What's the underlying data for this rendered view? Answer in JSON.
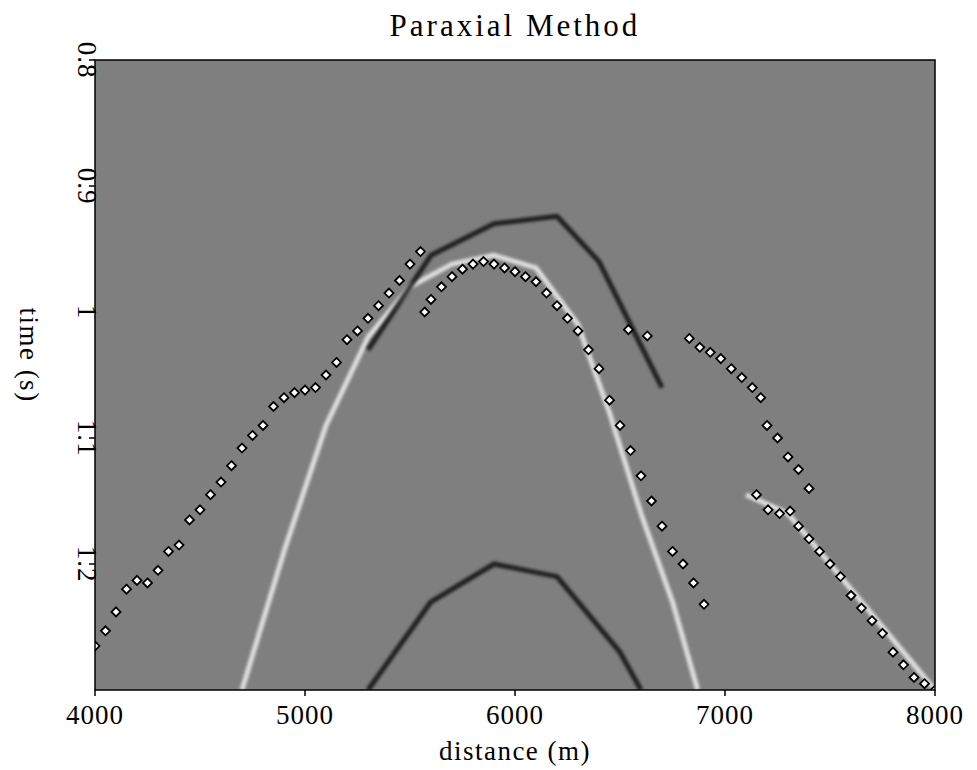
{
  "chart_data": {
    "type": "scatter",
    "title": "Paraxial Method",
    "xlabel": "distance (m)",
    "ylabel": "time (s)",
    "xlim": [
      4000,
      8000
    ],
    "ylim": [
      1.3,
      0.8
    ],
    "xticks": [
      4000,
      5000,
      6000,
      7000,
      8000
    ],
    "yticks": [
      0.8,
      0.9,
      1,
      1.1,
      1.2
    ],
    "series": [
      {
        "type": "scatter",
        "marker": "diamond",
        "color": "#ffffff",
        "x": [
          4000,
          4050,
          4100,
          4150,
          4200,
          4250,
          4300,
          4350,
          4400,
          4450,
          4500,
          4550,
          4600,
          4650,
          4700,
          4750,
          4800,
          4850,
          4900,
          4950,
          5000,
          5050,
          5100,
          5150,
          5200,
          5250,
          5300,
          5350,
          5400,
          5450,
          5500,
          5550,
          5570,
          5600,
          5650,
          5700,
          5750,
          5800,
          5850,
          5900,
          5950,
          6000,
          6050,
          6100,
          6150,
          6200,
          6250,
          6300,
          6350,
          6400,
          6450,
          6500,
          6550,
          6600,
          6650,
          6700,
          6750,
          6800,
          6850,
          6900,
          6540,
          6630,
          6830,
          6880,
          6930,
          6980,
          7030,
          7080,
          7130,
          7170,
          7200,
          7250,
          7300,
          7350,
          7400,
          7150,
          7205,
          7260,
          7310,
          7350,
          7400,
          7450,
          7500,
          7550,
          7600,
          7650,
          7700,
          7750,
          7800,
          7850,
          7900,
          7950,
          8000
        ],
        "values": [
          1.265,
          1.253,
          1.238,
          1.22,
          1.213,
          1.215,
          1.205,
          1.19,
          1.185,
          1.165,
          1.157,
          1.145,
          1.135,
          1.122,
          1.108,
          1.098,
          1.09,
          1.075,
          1.068,
          1.064,
          1.062,
          1.06,
          1.05,
          1.04,
          1.022,
          1.015,
          1.005,
          0.995,
          0.985,
          0.975,
          0.962,
          0.952,
          1.0,
          0.99,
          0.98,
          0.972,
          0.966,
          0.962,
          0.96,
          0.962,
          0.965,
          0.968,
          0.972,
          0.976,
          0.985,
          0.995,
          1.005,
          1.015,
          1.03,
          1.045,
          1.07,
          1.09,
          1.11,
          1.13,
          1.15,
          1.17,
          1.19,
          1.2,
          1.215,
          1.232,
          1.014,
          1.019,
          1.021,
          1.028,
          1.032,
          1.037,
          1.045,
          1.052,
          1.06,
          1.068,
          1.09,
          1.1,
          1.115,
          1.125,
          1.14,
          1.145,
          1.157,
          1.16,
          1.158,
          1.17,
          1.18,
          1.19,
          1.2,
          1.21,
          1.225,
          1.235,
          1.245,
          1.255,
          1.27,
          1.28,
          1.29,
          1.295,
          1.3
        ]
      },
      {
        "type": "line",
        "color": "#ffffff",
        "line_style": "solid",
        "x": [
          4700,
          4900,
          5100,
          5300,
          5500,
          5700,
          5900,
          6100,
          6300,
          6450,
          6600,
          6750,
          6870
        ],
        "values": [
          1.3,
          1.19,
          1.09,
          1.02,
          0.98,
          0.962,
          0.955,
          0.965,
          1.01,
          1.08,
          1.16,
          1.23,
          1.3
        ]
      },
      {
        "type": "line",
        "color": "#000000",
        "line_style": "solid",
        "x": [
          5300,
          5600,
          5900,
          6200,
          6400,
          6550,
          6700
        ],
        "values": [
          1.03,
          0.955,
          0.93,
          0.924,
          0.96,
          1.01,
          1.06
        ]
      },
      {
        "type": "line",
        "color": "#ffffff",
        "line_style": "solid",
        "x": [
          7100,
          7300,
          7500,
          7700,
          7900,
          8000
        ],
        "values": [
          1.145,
          1.16,
          1.2,
          1.24,
          1.28,
          1.3
        ]
      },
      {
        "type": "line",
        "color": "#000000",
        "line_style": "solid",
        "x": [
          5300,
          5600,
          5900,
          6200,
          6500,
          6600
        ],
        "values": [
          1.3,
          1.23,
          1.2,
          1.21,
          1.27,
          1.3
        ]
      }
    ]
  }
}
